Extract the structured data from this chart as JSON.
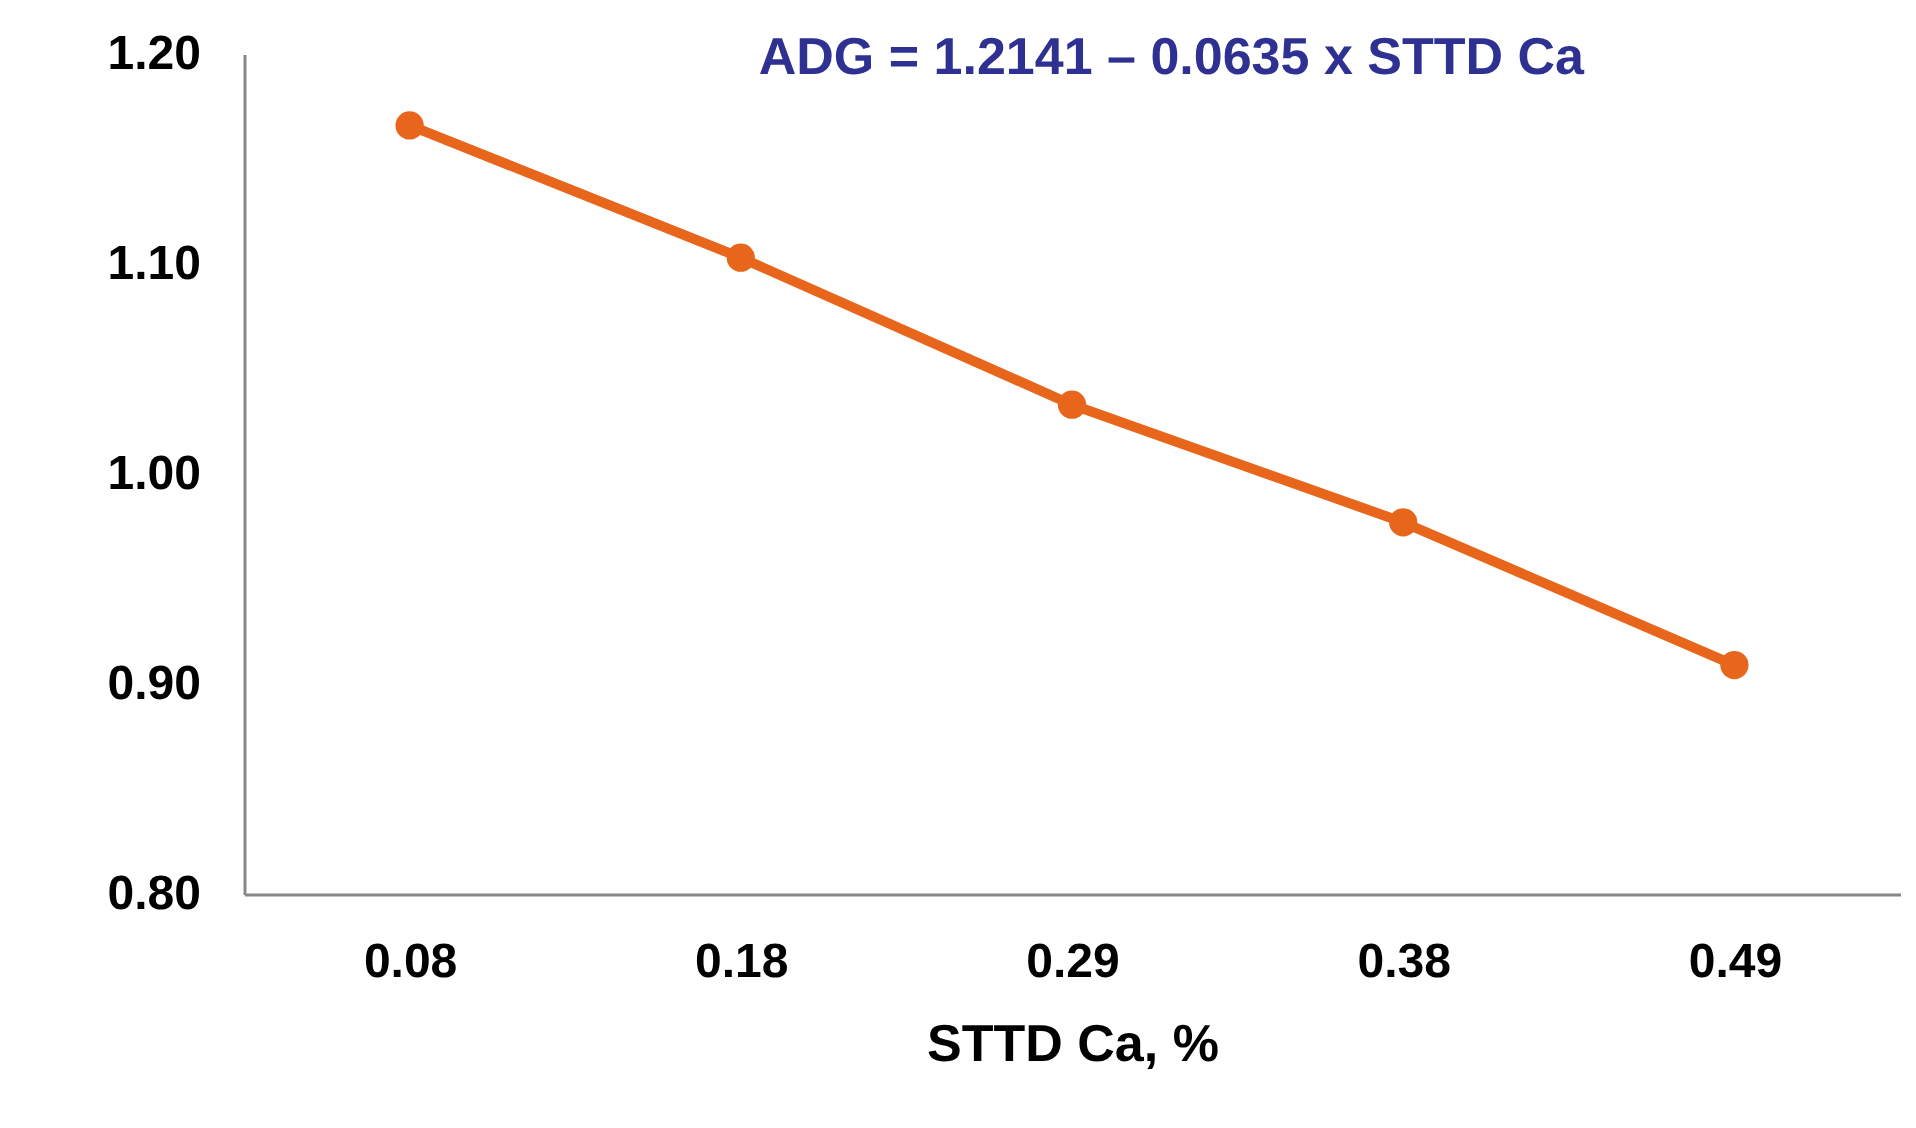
{
  "chart_data": {
    "type": "line",
    "categories": [
      "0.08",
      "0.18",
      "0.29",
      "0.38",
      "0.49"
    ],
    "values": [
      1.166,
      1.103,
      1.033,
      0.977,
      0.909
    ],
    "color": "#e8661c",
    "xlabel": "STTD Ca, %",
    "ylim": [
      0.8,
      1.2
    ],
    "yticks": [
      {
        "value": 0.8,
        "label": "0.80"
      },
      {
        "value": 0.9,
        "label": "0.90"
      },
      {
        "value": 1.0,
        "label": "1.00"
      },
      {
        "value": 1.1,
        "label": "1.10"
      },
      {
        "value": 1.2,
        "label": "1.20"
      }
    ],
    "grid": false,
    "marker": "circle",
    "line_style": "solid",
    "annotations": [
      "ADG = 1.2141 – 0.0635 x STTD Ca"
    ]
  }
}
